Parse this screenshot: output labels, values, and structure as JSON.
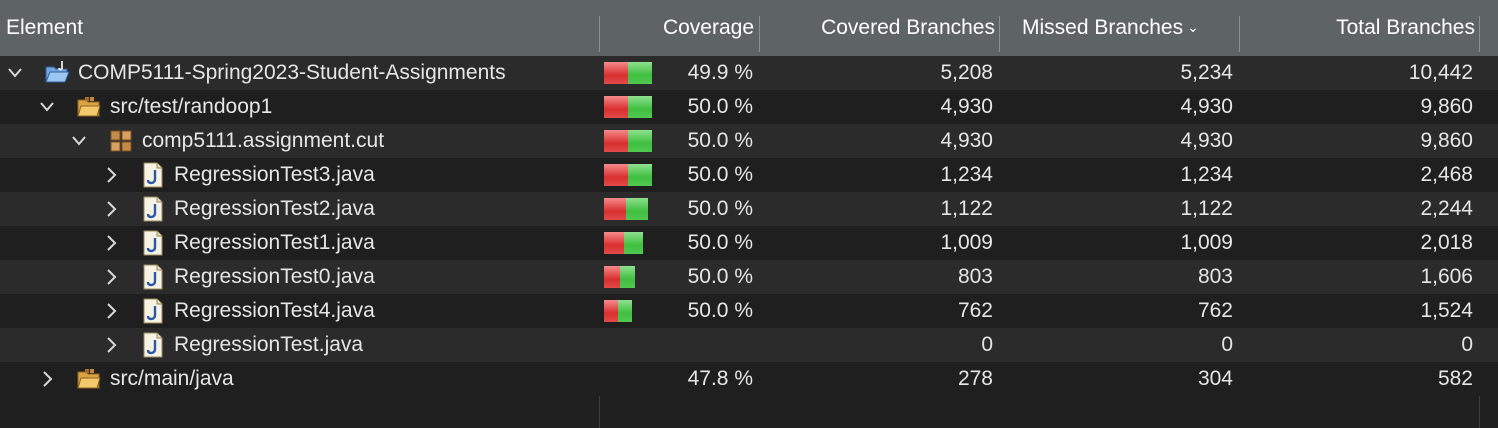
{
  "columns": {
    "element": "Element",
    "coverage": "Coverage",
    "covered": "Covered Branches",
    "missed": "Missed Branches",
    "total": "Total Branches"
  },
  "colors": {
    "covered_bar": "#3fbf3f",
    "missed_bar": "#d92f2f",
    "header_bg": "#5e6366"
  },
  "rows": [
    {
      "label": "COMP5111-Spring2023-Student-Assignments",
      "icon": "open-project-folder-icon",
      "chevron": "expanded",
      "level": 0,
      "coverage": "49.9 %",
      "bar": 1.0,
      "ratio": 0.499,
      "covered": "5,208",
      "missed": "5,234",
      "total": "10,442"
    },
    {
      "label": "src/test/randoop1",
      "icon": "source-folder-icon",
      "chevron": "expanded",
      "level": 1,
      "coverage": "50.0 %",
      "bar": 1.0,
      "ratio": 0.5,
      "covered": "4,930",
      "missed": "4,930",
      "total": "9,860"
    },
    {
      "label": "comp5111.assignment.cut",
      "icon": "package-icon",
      "chevron": "expanded",
      "level": 2,
      "coverage": "50.0 %",
      "bar": 1.0,
      "ratio": 0.5,
      "covered": "4,930",
      "missed": "4,930",
      "total": "9,860"
    },
    {
      "label": "RegressionTest3.java",
      "icon": "java-file-icon",
      "chevron": "collapsed",
      "level": 3,
      "coverage": "50.0 %",
      "bar": 1.0,
      "ratio": 0.5,
      "covered": "1,234",
      "missed": "1,234",
      "total": "2,468"
    },
    {
      "label": "RegressionTest2.java",
      "icon": "java-file-icon",
      "chevron": "collapsed",
      "level": 3,
      "coverage": "50.0 %",
      "bar": 0.91,
      "ratio": 0.5,
      "covered": "1,122",
      "missed": "1,122",
      "total": "2,244"
    },
    {
      "label": "RegressionTest1.java",
      "icon": "java-file-icon",
      "chevron": "collapsed",
      "level": 3,
      "coverage": "50.0 %",
      "bar": 0.82,
      "ratio": 0.5,
      "covered": "1,009",
      "missed": "1,009",
      "total": "2,018"
    },
    {
      "label": "RegressionTest0.java",
      "icon": "java-file-icon",
      "chevron": "collapsed",
      "level": 3,
      "coverage": "50.0 %",
      "bar": 0.65,
      "ratio": 0.5,
      "covered": "803",
      "missed": "803",
      "total": "1,606"
    },
    {
      "label": "RegressionTest4.java",
      "icon": "java-file-icon",
      "chevron": "collapsed",
      "level": 3,
      "coverage": "50.0 %",
      "bar": 0.58,
      "ratio": 0.5,
      "covered": "762",
      "missed": "762",
      "total": "1,524"
    },
    {
      "label": "RegressionTest.java",
      "icon": "java-file-icon",
      "chevron": "collapsed",
      "level": 3,
      "coverage": "",
      "bar": 0,
      "ratio": 0,
      "covered": "0",
      "missed": "0",
      "total": "0"
    },
    {
      "label": "src/main/java",
      "icon": "source-folder-icon",
      "chevron": "collapsed",
      "level": 1,
      "coverage": "47.8 %",
      "bar": 0,
      "ratio": 0.478,
      "covered": "278",
      "missed": "304",
      "total": "582"
    }
  ]
}
